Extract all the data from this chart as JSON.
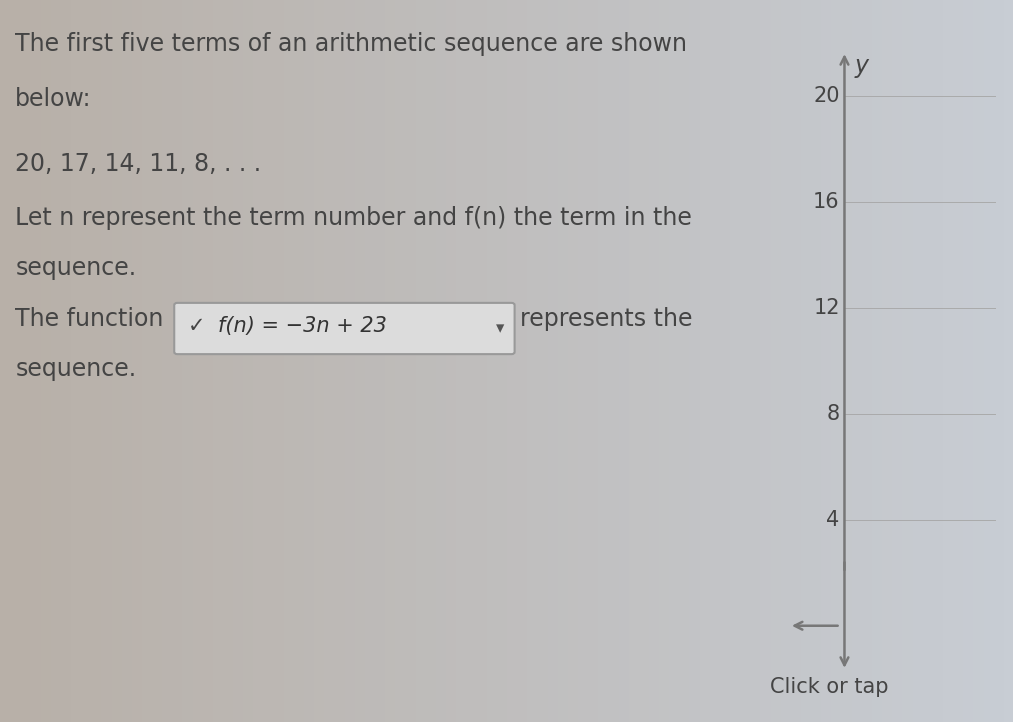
{
  "bg_left_color": "#b8b0a8",
  "bg_right_color": "#c8cdd4",
  "text_color": "#444444",
  "title_line1": "The first five terms of an arithmetic sequence are shown",
  "title_line2": "below:",
  "sequence_text": "20, 17, 14, 11, 8, . . .",
  "let_text": "Let n represent the term number and f(n) the term in the",
  "let_text2": "sequence.",
  "function_prefix": "The function",
  "function_box_check": "✓",
  "function_box_text": "f(n) = −3n + 23",
  "function_box_dropdown": "▾",
  "function_suffix": "represents the",
  "function_suffix2": "sequence.",
  "bottom_text": "Click or tap",
  "y_label": "y",
  "y_ticks": [
    4,
    8,
    12,
    16,
    20
  ],
  "y_axis_min": -2,
  "y_axis_max": 22,
  "axis_color": "#777777",
  "grid_color": "#aaaaaa",
  "font_size_main": 17,
  "font_size_axis": 15
}
